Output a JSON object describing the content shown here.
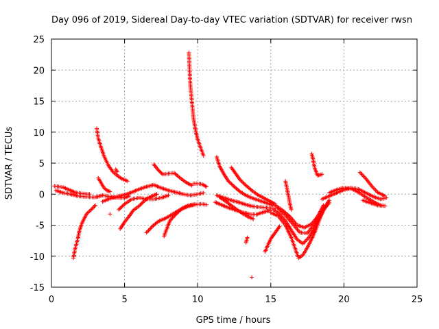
{
  "chart_data": {
    "type": "scatter",
    "title": "Day 096 of 2019, Sidereal Day-to-day VTEC variation (SDTVAR) for receiver rwsn",
    "xlabel": "GPS time / hours",
    "ylabel": "SDTVAR / TECUs",
    "xlim": [
      0,
      25
    ],
    "ylim": [
      -15,
      25
    ],
    "xticks": [
      0,
      5,
      10,
      15,
      20,
      25
    ],
    "yticks": [
      -15,
      -10,
      -5,
      0,
      5,
      10,
      15,
      20,
      25
    ],
    "grid": true,
    "marker": "+",
    "color": "#ff0000",
    "segments": [
      {
        "name": "arc-01",
        "points": [
          [
            0.2,
            1.3
          ],
          [
            0.8,
            1.1
          ],
          [
            1.2,
            0.7
          ],
          [
            1.6,
            0.3
          ],
          [
            2.0,
            0.1
          ],
          [
            2.6,
            0.0
          ]
        ]
      },
      {
        "name": "arc-02",
        "points": [
          [
            0.3,
            0.6
          ],
          [
            0.8,
            0.2
          ],
          [
            1.3,
            0.0
          ],
          [
            1.8,
            -0.3
          ],
          [
            2.3,
            -0.4
          ],
          [
            2.9,
            -0.5
          ]
        ]
      },
      {
        "name": "arc-03",
        "points": [
          [
            1.5,
            -10.3
          ],
          [
            1.6,
            -9.0
          ],
          [
            1.8,
            -7.2
          ],
          [
            1.9,
            -6.0
          ],
          [
            2.1,
            -4.6
          ],
          [
            2.4,
            -3.2
          ],
          [
            2.8,
            -2.3
          ],
          [
            3.0,
            -1.8
          ]
        ]
      },
      {
        "name": "arc-04",
        "points": [
          [
            3.1,
            10.6
          ],
          [
            3.2,
            9.0
          ],
          [
            3.4,
            7.5
          ],
          [
            3.6,
            6.1
          ],
          [
            3.9,
            4.6
          ],
          [
            4.2,
            3.6
          ],
          [
            4.5,
            3.0
          ],
          [
            4.8,
            2.5
          ],
          [
            5.2,
            2.1
          ]
        ]
      },
      {
        "name": "arc-05",
        "points": [
          [
            3.2,
            2.6
          ],
          [
            3.4,
            1.8
          ],
          [
            3.6,
            1.0
          ],
          [
            3.8,
            0.6
          ],
          [
            4.0,
            0.4
          ]
        ]
      },
      {
        "name": "arc-06",
        "points": [
          [
            4.4,
            4.0
          ],
          [
            4.5,
            3.6
          ]
        ]
      },
      {
        "name": "arc-07",
        "points": [
          [
            3.0,
            -0.5
          ],
          [
            3.5,
            -0.2
          ],
          [
            4.0,
            -0.4
          ],
          [
            4.5,
            -0.6
          ],
          [
            5.0,
            -0.6
          ],
          [
            5.3,
            -0.3
          ]
        ]
      },
      {
        "name": "arc-08",
        "points": [
          [
            3.5,
            -1.2
          ],
          [
            4.0,
            -0.7
          ],
          [
            4.5,
            -0.4
          ],
          [
            5.0,
            -0.1
          ],
          [
            5.5,
            0.3
          ],
          [
            6.0,
            0.8
          ],
          [
            6.5,
            1.2
          ],
          [
            7.0,
            1.5
          ],
          [
            7.5,
            1.0
          ],
          [
            8.0,
            0.6
          ],
          [
            8.5,
            0.3
          ],
          [
            9.0,
            0.0
          ],
          [
            9.5,
            -0.2
          ],
          [
            10.0,
            0.0
          ],
          [
            10.4,
            0.2
          ]
        ]
      },
      {
        "name": "arc-09",
        "points": [
          [
            4.7,
            -5.6
          ],
          [
            5.0,
            -4.5
          ],
          [
            5.3,
            -3.6
          ],
          [
            5.6,
            -2.6
          ],
          [
            6.0,
            -1.9
          ],
          [
            6.3,
            -1.2
          ],
          [
            6.6,
            -0.6
          ],
          [
            7.0,
            -0.2
          ],
          [
            7.2,
            0.0
          ]
        ]
      },
      {
        "name": "arc-10",
        "points": [
          [
            4.6,
            -2.5
          ],
          [
            5.0,
            -1.6
          ],
          [
            5.5,
            -0.8
          ],
          [
            6.0,
            -0.6
          ],
          [
            6.5,
            -0.8
          ],
          [
            7.0,
            -0.8
          ],
          [
            7.5,
            -0.6
          ],
          [
            8.0,
            -0.2
          ]
        ]
      },
      {
        "name": "arc-11",
        "points": [
          [
            4.0,
            -3.2
          ]
        ]
      },
      {
        "name": "arc-12",
        "points": [
          [
            6.5,
            -6.2
          ],
          [
            6.9,
            -5.2
          ],
          [
            7.3,
            -4.4
          ],
          [
            7.8,
            -3.9
          ],
          [
            8.3,
            -3.2
          ],
          [
            8.8,
            -2.5
          ],
          [
            9.3,
            -2.0
          ],
          [
            9.8,
            -1.7
          ],
          [
            10.3,
            -1.6
          ],
          [
            10.6,
            -1.7
          ]
        ]
      },
      {
        "name": "arc-13",
        "points": [
          [
            7.7,
            -6.8
          ],
          [
            7.9,
            -5.5
          ],
          [
            8.1,
            -4.3
          ],
          [
            8.4,
            -3.5
          ],
          [
            8.7,
            -2.8
          ],
          [
            9.0,
            -2.2
          ],
          [
            9.4,
            -1.8
          ],
          [
            9.8,
            -1.6
          ]
        ]
      },
      {
        "name": "arc-14",
        "points": [
          [
            7.0,
            4.8
          ],
          [
            7.3,
            3.9
          ],
          [
            7.6,
            3.2
          ],
          [
            8.0,
            3.3
          ],
          [
            8.4,
            3.4
          ],
          [
            8.8,
            2.6
          ],
          [
            9.2,
            1.9
          ],
          [
            9.6,
            1.4
          ]
        ]
      },
      {
        "name": "arc-15",
        "points": [
          [
            9.4,
            22.8
          ],
          [
            9.45,
            20.0
          ],
          [
            9.5,
            17.5
          ],
          [
            9.6,
            15.0
          ],
          [
            9.7,
            12.5
          ],
          [
            9.8,
            11.0
          ],
          [
            9.9,
            9.8
          ],
          [
            10.0,
            8.8
          ],
          [
            10.2,
            7.5
          ],
          [
            10.4,
            6.2
          ]
        ]
      },
      {
        "name": "arc-16",
        "points": [
          [
            9.7,
            1.7
          ],
          [
            10.0,
            1.7
          ],
          [
            10.3,
            1.6
          ],
          [
            10.6,
            1.2
          ]
        ]
      },
      {
        "name": "arc-17",
        "points": [
          [
            11.3,
            6.0
          ],
          [
            11.5,
            4.5
          ],
          [
            11.8,
            3.2
          ],
          [
            12.1,
            2.1
          ],
          [
            12.5,
            1.2
          ],
          [
            12.9,
            0.4
          ],
          [
            13.3,
            -0.2
          ],
          [
            13.8,
            -0.7
          ],
          [
            14.3,
            -1.1
          ],
          [
            14.8,
            -1.5
          ],
          [
            15.2,
            -1.8
          ]
        ]
      },
      {
        "name": "arc-18",
        "points": [
          [
            12.3,
            4.3
          ],
          [
            12.6,
            3.3
          ],
          [
            12.9,
            2.3
          ],
          [
            13.3,
            1.4
          ],
          [
            13.7,
            0.6
          ],
          [
            14.1,
            -0.1
          ],
          [
            14.5,
            -0.6
          ],
          [
            14.9,
            -1.1
          ],
          [
            15.3,
            -1.6
          ]
        ]
      },
      {
        "name": "arc-19",
        "points": [
          [
            11.3,
            -0.2
          ],
          [
            11.8,
            -0.6
          ],
          [
            12.3,
            -1.0
          ],
          [
            12.8,
            -1.3
          ],
          [
            13.3,
            -1.7
          ],
          [
            13.8,
            -2.0
          ],
          [
            14.3,
            -2.1
          ],
          [
            14.8,
            -2.2
          ],
          [
            15.3,
            -2.3
          ]
        ]
      },
      {
        "name": "arc-20",
        "points": [
          [
            11.2,
            -1.3
          ],
          [
            11.6,
            -1.7
          ],
          [
            12.0,
            -2.1
          ],
          [
            12.5,
            -2.5
          ],
          [
            13.0,
            -2.9
          ],
          [
            13.5,
            -3.2
          ],
          [
            14.0,
            -3.3
          ],
          [
            14.5,
            -2.9
          ],
          [
            15.0,
            -2.6
          ]
        ]
      },
      {
        "name": "arc-21",
        "points": [
          [
            11.5,
            -0.5
          ],
          [
            12.0,
            -1.3
          ],
          [
            12.5,
            -2.2
          ],
          [
            13.0,
            -3.0
          ],
          [
            13.4,
            -3.6
          ],
          [
            13.8,
            -4.0
          ]
        ]
      },
      {
        "name": "arc-22",
        "points": [
          [
            13.3,
            -7.8
          ],
          [
            13.4,
            -7.0
          ]
        ]
      },
      {
        "name": "arc-23",
        "points": [
          [
            13.7,
            -13.4
          ]
        ]
      },
      {
        "name": "arc-24",
        "points": [
          [
            14.6,
            -9.3
          ],
          [
            14.8,
            -8.2
          ],
          [
            15.0,
            -7.2
          ],
          [
            15.3,
            -6.2
          ],
          [
            15.6,
            -5.2
          ]
        ]
      },
      {
        "name": "arc-25",
        "points": [
          [
            15.0,
            -3.0
          ],
          [
            15.5,
            -3.5
          ],
          [
            16.0,
            -5.0
          ],
          [
            16.4,
            -7.0
          ],
          [
            16.7,
            -9.0
          ],
          [
            16.9,
            -10.3
          ],
          [
            17.2,
            -9.8
          ],
          [
            17.5,
            -8.6
          ],
          [
            17.8,
            -7.2
          ],
          [
            18.1,
            -5.6
          ],
          [
            18.4,
            -3.6
          ],
          [
            18.7,
            -2.0
          ],
          [
            19.0,
            -1.0
          ]
        ]
      },
      {
        "name": "arc-26",
        "points": [
          [
            15.2,
            -2.5
          ],
          [
            15.6,
            -3.2
          ],
          [
            16.0,
            -4.3
          ],
          [
            16.4,
            -5.8
          ],
          [
            16.8,
            -7.3
          ],
          [
            17.2,
            -8.0
          ],
          [
            17.6,
            -7.0
          ],
          [
            18.0,
            -5.5
          ],
          [
            18.4,
            -3.5
          ],
          [
            18.8,
            -1.8
          ]
        ]
      },
      {
        "name": "arc-27",
        "points": [
          [
            15.5,
            -2.3
          ],
          [
            16.0,
            -3.4
          ],
          [
            16.5,
            -4.8
          ],
          [
            17.0,
            -6.2
          ],
          [
            17.5,
            -6.3
          ],
          [
            18.0,
            -4.8
          ],
          [
            18.5,
            -2.8
          ],
          [
            19.0,
            -1.4
          ]
        ]
      },
      {
        "name": "arc-28",
        "points": [
          [
            15.3,
            -1.8
          ],
          [
            15.8,
            -2.6
          ],
          [
            16.3,
            -3.6
          ],
          [
            16.8,
            -5.0
          ],
          [
            17.3,
            -5.4
          ],
          [
            17.8,
            -4.8
          ],
          [
            18.2,
            -3.6
          ],
          [
            18.6,
            -1.8
          ]
        ]
      },
      {
        "name": "arc-29",
        "points": [
          [
            16.0,
            2.1
          ],
          [
            16.1,
            1.0
          ],
          [
            16.2,
            -0.2
          ],
          [
            16.3,
            -1.5
          ],
          [
            16.4,
            -2.5
          ]
        ]
      },
      {
        "name": "arc-30",
        "points": [
          [
            17.8,
            6.5
          ],
          [
            17.9,
            5.5
          ],
          [
            18.0,
            4.2
          ],
          [
            18.2,
            3.0
          ],
          [
            18.5,
            3.2
          ]
        ]
      },
      {
        "name": "arc-31",
        "points": [
          [
            18.5,
            -0.8
          ],
          [
            19.0,
            -0.3
          ],
          [
            19.5,
            0.2
          ],
          [
            20.0,
            0.7
          ],
          [
            20.5,
            1.0
          ],
          [
            21.0,
            0.8
          ],
          [
            21.5,
            0.2
          ],
          [
            22.0,
            -0.4
          ],
          [
            22.5,
            -0.8
          ],
          [
            22.9,
            -0.6
          ]
        ]
      },
      {
        "name": "arc-32",
        "points": [
          [
            19.0,
            0.2
          ],
          [
            19.5,
            0.7
          ],
          [
            20.0,
            1.0
          ],
          [
            20.5,
            0.9
          ],
          [
            21.0,
            0.3
          ],
          [
            21.5,
            -0.5
          ],
          [
            22.0,
            -1.2
          ],
          [
            22.5,
            -1.8
          ],
          [
            22.8,
            -1.9
          ]
        ]
      },
      {
        "name": "arc-33",
        "points": [
          [
            21.1,
            3.5
          ],
          [
            21.5,
            2.5
          ],
          [
            21.9,
            1.3
          ],
          [
            22.3,
            0.3
          ],
          [
            22.8,
            -0.3
          ]
        ]
      },
      {
        "name": "arc-34",
        "points": [
          [
            21.3,
            -1.0
          ],
          [
            21.8,
            -1.4
          ],
          [
            22.3,
            -1.8
          ],
          [
            22.8,
            -1.9
          ]
        ]
      }
    ]
  }
}
